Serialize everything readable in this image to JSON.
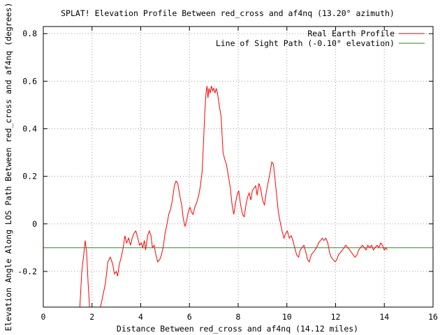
{
  "chart_data": {
    "type": "line",
    "title": "SPLAT! Elevation Profile Between red_cross and af4nq (13.20° azimuth)",
    "xlabel": "Distance Between red_cross and af4nq (14.12 miles)",
    "ylabel": "Elevation Angle Along LOS Path Between red_cross and af4nq (degrees)",
    "xlim": [
      0,
      16
    ],
    "ylim": [
      -0.35,
      0.83
    ],
    "x_ticks": [
      "0",
      "2",
      "4",
      "6",
      "8",
      "10",
      "12",
      "14",
      "16"
    ],
    "y_ticks": [
      "-0.2",
      "0",
      "0.2",
      "0.4",
      "0.6",
      "0.8"
    ],
    "grid": true,
    "legend_position": "top-right",
    "series": [
      {
        "name": "Real Earth Profile",
        "color": "#ff0000",
        "points": [
          [
            1.5,
            -0.35
          ],
          [
            1.58,
            -0.2
          ],
          [
            1.66,
            -0.13
          ],
          [
            1.72,
            -0.07
          ],
          [
            1.78,
            -0.12
          ],
          [
            1.84,
            -0.25
          ],
          [
            1.9,
            -0.35
          ],
          [
            2.35,
            -0.35
          ],
          [
            2.45,
            -0.3
          ],
          [
            2.55,
            -0.25
          ],
          [
            2.65,
            -0.16
          ],
          [
            2.75,
            -0.14
          ],
          [
            2.85,
            -0.17
          ],
          [
            2.92,
            -0.21
          ],
          [
            3.0,
            -0.2
          ],
          [
            3.05,
            -0.22
          ],
          [
            3.12,
            -0.17
          ],
          [
            3.2,
            -0.14
          ],
          [
            3.28,
            -0.1
          ],
          [
            3.35,
            -0.05
          ],
          [
            3.42,
            -0.08
          ],
          [
            3.5,
            -0.06
          ],
          [
            3.58,
            -0.09
          ],
          [
            3.65,
            -0.06
          ],
          [
            3.72,
            -0.04
          ],
          [
            3.8,
            -0.03
          ],
          [
            3.88,
            -0.06
          ],
          [
            3.95,
            -0.09
          ],
          [
            4.02,
            -0.08
          ],
          [
            4.08,
            -0.1
          ],
          [
            4.15,
            -0.07
          ],
          [
            4.2,
            -0.11
          ],
          [
            4.28,
            -0.05
          ],
          [
            4.35,
            -0.03
          ],
          [
            4.42,
            -0.05
          ],
          [
            4.48,
            -0.1
          ],
          [
            4.55,
            -0.09
          ],
          [
            4.62,
            -0.13
          ],
          [
            4.7,
            -0.16
          ],
          [
            4.78,
            -0.15
          ],
          [
            4.85,
            -0.13
          ],
          [
            4.92,
            -0.1
          ],
          [
            5.0,
            -0.04
          ],
          [
            5.08,
            0.0
          ],
          [
            5.15,
            0.04
          ],
          [
            5.22,
            0.06
          ],
          [
            5.3,
            0.1
          ],
          [
            5.38,
            0.16
          ],
          [
            5.45,
            0.18
          ],
          [
            5.52,
            0.17
          ],
          [
            5.6,
            0.12
          ],
          [
            5.68,
            0.08
          ],
          [
            5.75,
            0.02
          ],
          [
            5.82,
            -0.01
          ],
          [
            5.88,
            0.01
          ],
          [
            5.95,
            0.05
          ],
          [
            6.02,
            0.07
          ],
          [
            6.08,
            0.05
          ],
          [
            6.15,
            0.04
          ],
          [
            6.22,
            0.07
          ],
          [
            6.3,
            0.09
          ],
          [
            6.38,
            0.12
          ],
          [
            6.45,
            0.16
          ],
          [
            6.52,
            0.22
          ],
          [
            6.58,
            0.35
          ],
          [
            6.63,
            0.47
          ],
          [
            6.68,
            0.55
          ],
          [
            6.72,
            0.58
          ],
          [
            6.76,
            0.53
          ],
          [
            6.8,
            0.57
          ],
          [
            6.85,
            0.55
          ],
          [
            6.9,
            0.58
          ],
          [
            6.95,
            0.56
          ],
          [
            7.0,
            0.57
          ],
          [
            7.05,
            0.55
          ],
          [
            7.1,
            0.57
          ],
          [
            7.15,
            0.55
          ],
          [
            7.22,
            0.5
          ],
          [
            7.3,
            0.45
          ],
          [
            7.38,
            0.3
          ],
          [
            7.45,
            0.27
          ],
          [
            7.52,
            0.25
          ],
          [
            7.6,
            0.2
          ],
          [
            7.68,
            0.15
          ],
          [
            7.75,
            0.08
          ],
          [
            7.82,
            0.04
          ],
          [
            7.88,
            0.08
          ],
          [
            7.95,
            0.12
          ],
          [
            8.02,
            0.14
          ],
          [
            8.1,
            0.08
          ],
          [
            8.18,
            0.04
          ],
          [
            8.25,
            0.03
          ],
          [
            8.32,
            0.08
          ],
          [
            8.38,
            0.11
          ],
          [
            8.45,
            0.13
          ],
          [
            8.52,
            0.1
          ],
          [
            8.58,
            0.14
          ],
          [
            8.65,
            0.15
          ],
          [
            8.72,
            0.16
          ],
          [
            8.78,
            0.12
          ],
          [
            8.85,
            0.17
          ],
          [
            8.92,
            0.15
          ],
          [
            9.0,
            0.1
          ],
          [
            9.08,
            0.08
          ],
          [
            9.15,
            0.13
          ],
          [
            9.22,
            0.17
          ],
          [
            9.3,
            0.21
          ],
          [
            9.38,
            0.26
          ],
          [
            9.45,
            0.25
          ],
          [
            9.52,
            0.18
          ],
          [
            9.58,
            0.12
          ],
          [
            9.65,
            0.05
          ],
          [
            9.72,
            0.01
          ],
          [
            9.8,
            -0.03
          ],
          [
            9.88,
            -0.06
          ],
          [
            9.95,
            -0.04
          ],
          [
            10.02,
            -0.03
          ],
          [
            10.1,
            -0.06
          ],
          [
            10.18,
            -0.05
          ],
          [
            10.25,
            -0.07
          ],
          [
            10.32,
            -0.1
          ],
          [
            10.4,
            -0.13
          ],
          [
            10.48,
            -0.14
          ],
          [
            10.55,
            -0.11
          ],
          [
            10.62,
            -0.1
          ],
          [
            10.7,
            -0.09
          ],
          [
            10.78,
            -0.12
          ],
          [
            10.85,
            -0.15
          ],
          [
            10.92,
            -0.16
          ],
          [
            11.0,
            -0.13
          ],
          [
            11.08,
            -0.12
          ],
          [
            11.15,
            -0.11
          ],
          [
            11.22,
            -0.1
          ],
          [
            11.3,
            -0.08
          ],
          [
            11.38,
            -0.07
          ],
          [
            11.45,
            -0.06
          ],
          [
            11.52,
            -0.07
          ],
          [
            11.6,
            -0.06
          ],
          [
            11.68,
            -0.08
          ],
          [
            11.75,
            -0.12
          ],
          [
            11.82,
            -0.14
          ],
          [
            11.9,
            -0.15
          ],
          [
            11.98,
            -0.16
          ],
          [
            12.05,
            -0.15
          ],
          [
            12.12,
            -0.13
          ],
          [
            12.2,
            -0.12
          ],
          [
            12.28,
            -0.11
          ],
          [
            12.35,
            -0.1
          ],
          [
            12.42,
            -0.09
          ],
          [
            12.5,
            -0.1
          ],
          [
            12.58,
            -0.11
          ],
          [
            12.65,
            -0.12
          ],
          [
            12.72,
            -0.13
          ],
          [
            12.8,
            -0.14
          ],
          [
            12.88,
            -0.13
          ],
          [
            12.95,
            -0.11
          ],
          [
            13.02,
            -0.1
          ],
          [
            13.1,
            -0.09
          ],
          [
            13.18,
            -0.1
          ],
          [
            13.25,
            -0.11
          ],
          [
            13.32,
            -0.09
          ],
          [
            13.4,
            -0.1
          ],
          [
            13.48,
            -0.09
          ],
          [
            13.55,
            -0.11
          ],
          [
            13.62,
            -0.1
          ],
          [
            13.7,
            -0.09
          ],
          [
            13.78,
            -0.1
          ],
          [
            13.85,
            -0.08
          ],
          [
            13.92,
            -0.09
          ],
          [
            14.0,
            -0.11
          ],
          [
            14.06,
            -0.1
          ],
          [
            14.12,
            -0.11
          ]
        ]
      },
      {
        "name": "Line of Sight Path (-0.10° elevation)",
        "color": "#00a000",
        "points": [
          [
            0,
            -0.1
          ],
          [
            16,
            -0.1
          ]
        ]
      }
    ]
  }
}
